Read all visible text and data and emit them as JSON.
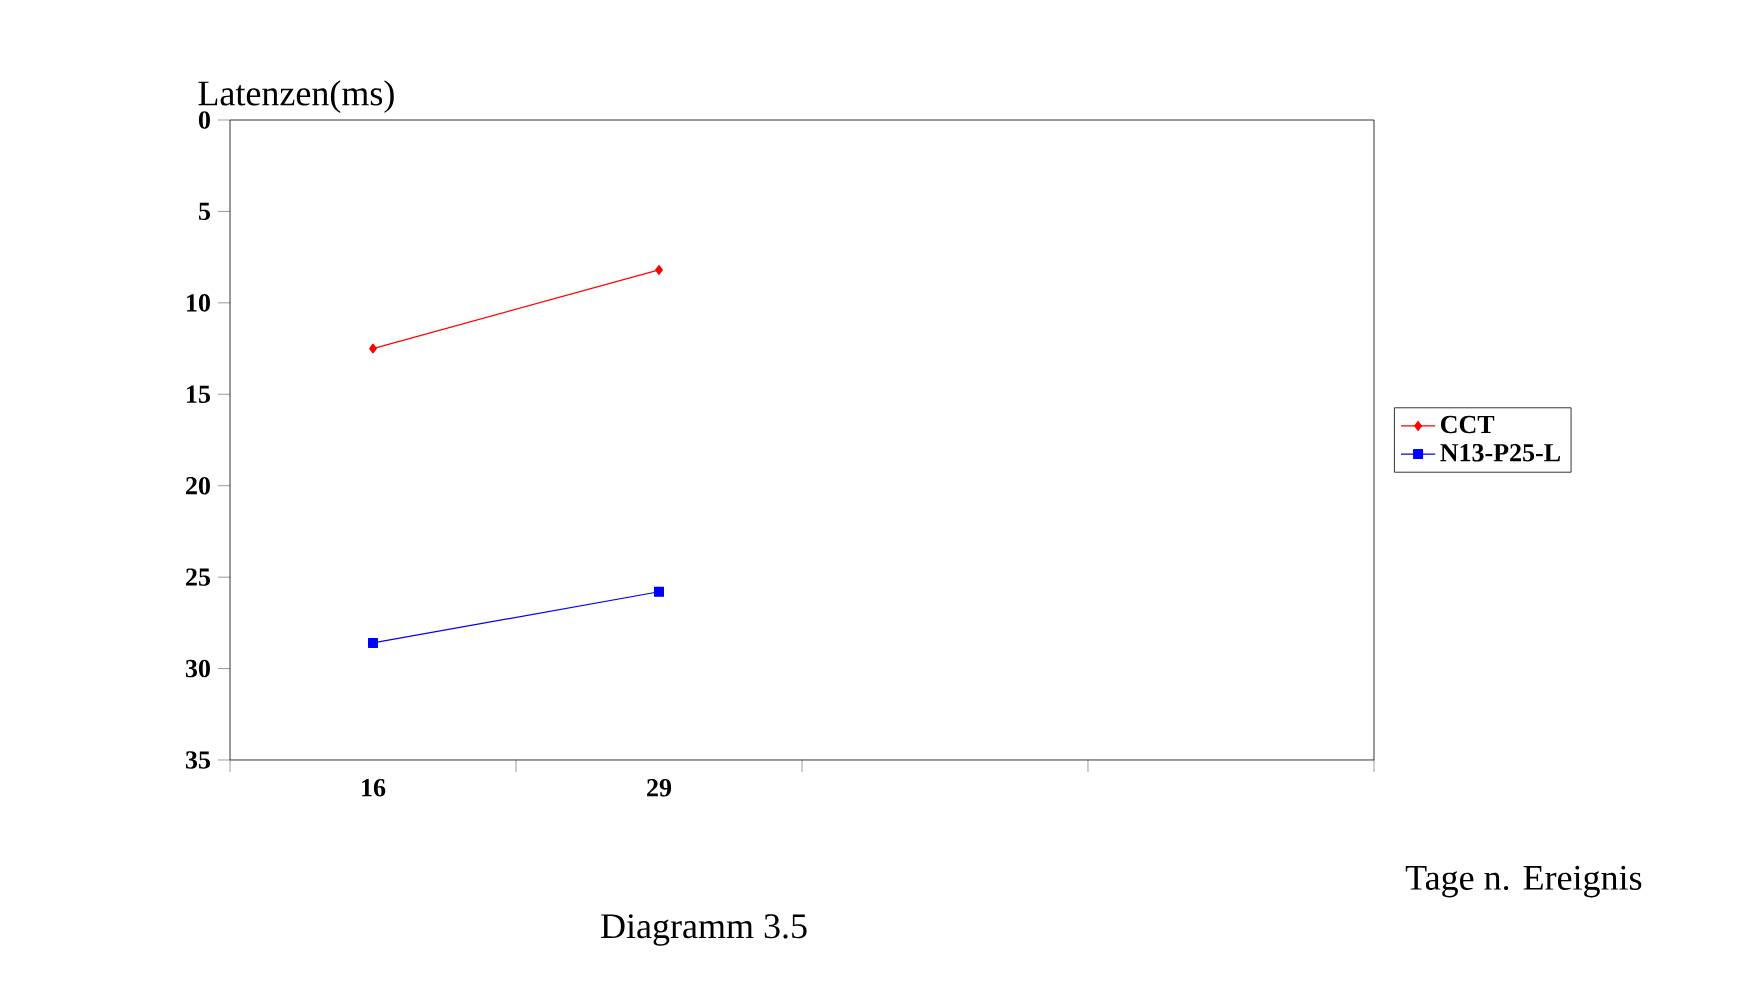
{
  "chart_data": {
    "type": "line",
    "ylabel": "Latenzen(ms)",
    "xlabel": "Tage n. Ereignis",
    "annotations": [
      "Diagramm 3.5"
    ],
    "categories": [
      "16",
      "29",
      null,
      null
    ],
    "ylim": [
      35,
      0
    ],
    "yticks": [
      0,
      5,
      10,
      15,
      20,
      25,
      30,
      35
    ],
    "grid": false,
    "legend": "right",
    "series": [
      {
        "name": "CCT",
        "color": "#ff0000",
        "marker": "diamond",
        "values": [
          12.5,
          8.2,
          null,
          null
        ]
      },
      {
        "name": "N13-P25-L",
        "color": "#0000ff",
        "marker": "square",
        "values": [
          28.6,
          25.8,
          null,
          null
        ]
      }
    ]
  }
}
